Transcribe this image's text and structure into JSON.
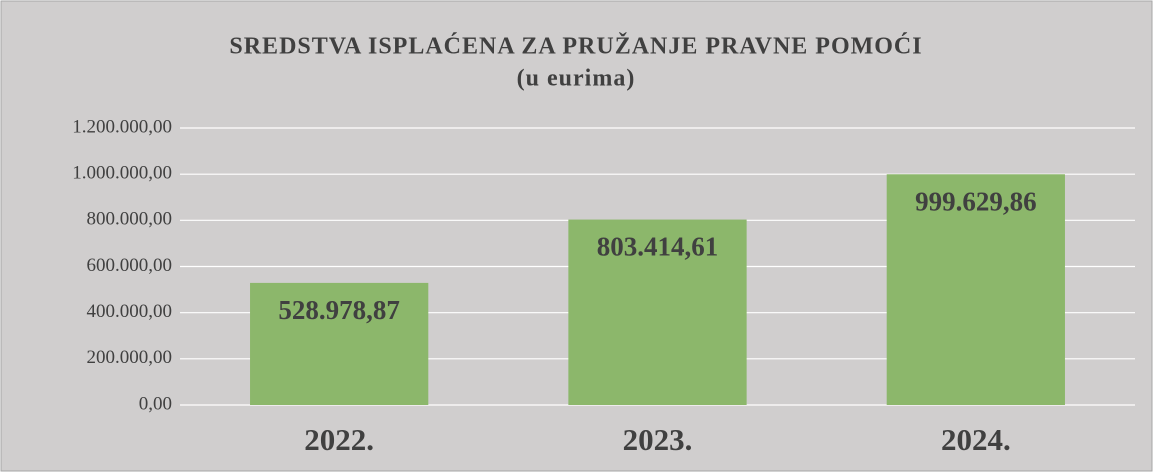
{
  "chart_data": {
    "type": "bar",
    "title": "SREDSTVA ISPLAĆENA ZA PRUŽANJE PRAVNE POMOĆI",
    "subtitle": "(u eurima)",
    "categories": [
      "2022.",
      "2023.",
      "2024."
    ],
    "values": [
      528978.87,
      803414.61,
      999629.86
    ],
    "value_labels": [
      "528.978,87",
      "803.414,61",
      "999.629,86"
    ],
    "color": "#8cb76b",
    "ylim": [
      0,
      1200000
    ],
    "yticks": [
      {
        "value": 0,
        "label": "0,00"
      },
      {
        "value": 200000,
        "label": "200.000,00"
      },
      {
        "value": 400000,
        "label": "400.000,00"
      },
      {
        "value": 600000,
        "label": "600.000,00"
      },
      {
        "value": 800000,
        "label": "800.000,00"
      },
      {
        "value": 1000000,
        "label": "1.000.000,00"
      },
      {
        "value": 1200000,
        "label": "1.200.000,00"
      }
    ],
    "grid": true
  }
}
